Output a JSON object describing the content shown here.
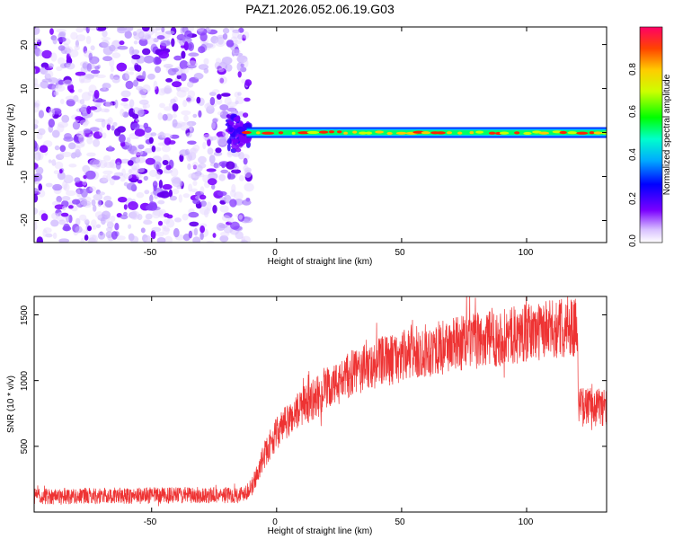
{
  "figure_title": "PAZ1.2026.052.06.19.G03",
  "chart_data": [
    {
      "type": "heatmap",
      "title": "PAZ1.2026.052.06.19.G03",
      "xlabel": "Height of straight line (km)",
      "ylabel": "Frequency (Hz)",
      "xlim": [
        -97,
        132
      ],
      "ylim": [
        -25,
        24
      ],
      "xticks": [
        -50,
        0,
        50,
        100
      ],
      "yticks": [
        20,
        10,
        0,
        -10,
        -20
      ],
      "xtick_labels": [
        "-50",
        "0",
        "50",
        "100"
      ],
      "ytick_labels": [
        "20",
        "10",
        "0",
        "-10",
        "-20"
      ],
      "noise_region_x": [
        -97,
        -12
      ],
      "signal_region_x": [
        -12,
        132
      ],
      "signal_frequency_hz": 0,
      "colorbar": {
        "label": "Normalized spectral amplitude",
        "range": [
          0,
          1
        ],
        "ticks": [
          0.0,
          0.2,
          0.4,
          0.6,
          0.8
        ],
        "tick_labels": [
          "0.0",
          "0.2",
          "0.4",
          "0.6",
          "0.8"
        ]
      }
    },
    {
      "type": "line",
      "xlabel": "Height of straight line (km)",
      "ylabel": "SNR (10 * v/v)",
      "xlim": [
        -97,
        132
      ],
      "ylim": [
        0,
        1640
      ],
      "xticks": [
        -50,
        0,
        50,
        100
      ],
      "yticks": [
        500,
        1000,
        1500
      ],
      "xtick_labels": [
        "-50",
        "0",
        "50",
        "100"
      ],
      "ytick_labels": [
        "500",
        "1000",
        "1500"
      ],
      "color": "#ee3333",
      "series_profile": {
        "x": [
          -97,
          -15,
          -10,
          -5,
          0,
          10,
          20,
          30,
          40,
          50,
          60,
          70,
          80,
          90,
          100,
          110,
          120,
          121,
          132
        ],
        "y": [
          120,
          130,
          180,
          430,
          600,
          800,
          920,
          1050,
          1130,
          1180,
          1230,
          1270,
          1300,
          1330,
          1360,
          1390,
          1420,
          800,
          800
        ]
      }
    }
  ]
}
